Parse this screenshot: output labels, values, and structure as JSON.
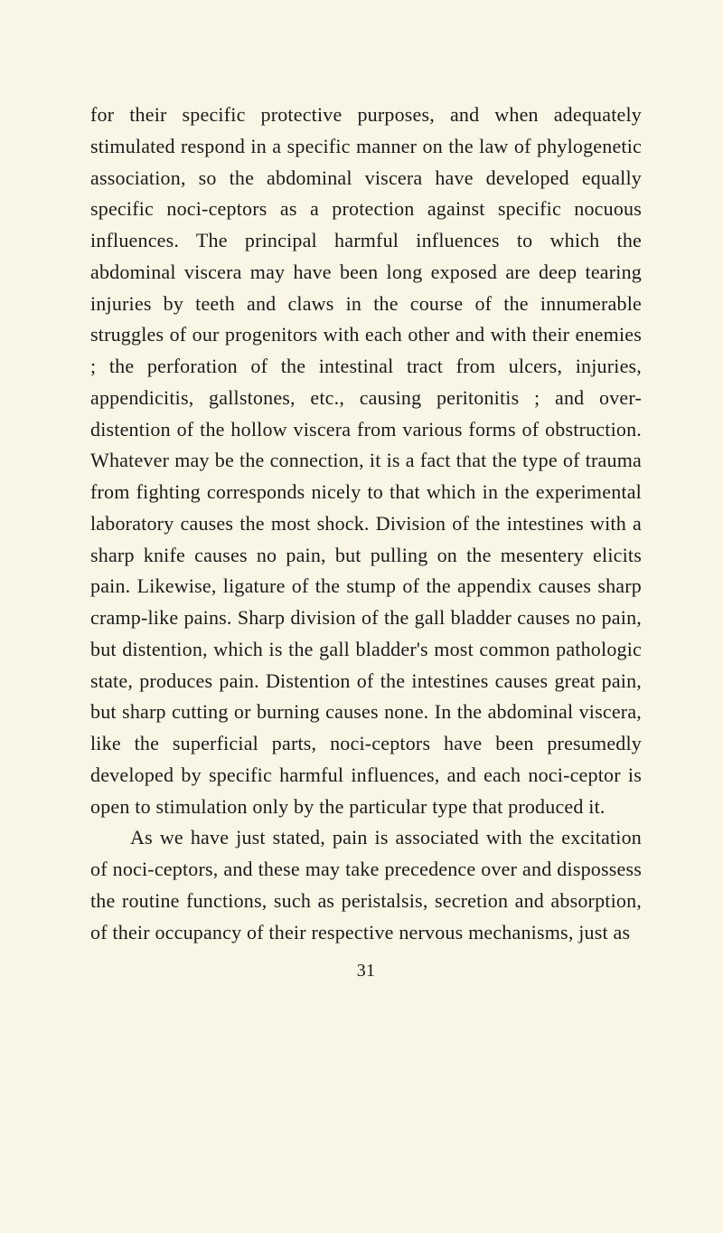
{
  "page": {
    "background_color": "#faf6e6",
    "text_color": "#1a1a1a",
    "font_family": "Georgia, serif",
    "body_fontsize": 22,
    "line_height": 1.58,
    "number": "31",
    "paragraphs": [
      "for their specific protective purposes, and when adequately stimulated respond in a specific manner on the law of phylogenetic association, so the abdominal viscera have developed equally specific noci-ceptors as a protection against specific nocuous influences. The principal harmful influences to which the abdominal viscera may have been long exposed are deep tearing injuries by teeth and claws in the course of the innumerable struggles of our progenitors with each other and with their enemies ; the perforation of the intestinal tract from ulcers, injuries, appendicitis, gallstones, etc., causing peritonitis ; and over-distention of the hollow viscera from various forms of obstruction. Whatever may be the connection, it is a fact that the type of trauma from fighting corresponds nicely to that which in the experimental laboratory causes the most shock. Division of the intestines with a sharp knife causes no pain, but pulling on the mesentery elicits pain. Likewise, ligature of the stump of the appendix causes sharp cramp-like pains. Sharp division of the gall bladder causes no pain, but distention, which is the gall bladder's most common pathologic state, produces pain. Distention of the intestines causes great pain, but sharp cutting or burning causes none. In the abdominal viscera, like the superficial parts, noci-ceptors have been presumedly developed by specific harmful influences, and each noci-ceptor is open to stimulation only by the particular type that produced it.",
      "As we have just stated, pain is associated with the excitation of noci-ceptors, and these may take precedence over and dispossess the routine functions, such as peristalsis, secretion and absorption, of their occupancy of their respective nervous mechanisms, just as"
    ]
  }
}
